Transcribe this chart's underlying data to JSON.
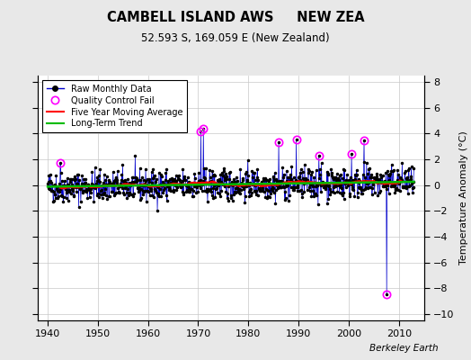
{
  "title": "CAMBELL ISLAND AWS     NEW ZEA",
  "subtitle": "52.593 S, 169.059 E (New Zealand)",
  "ylabel": "Temperature Anomaly (°C)",
  "xlabel_credit": "Berkeley Earth",
  "background_color": "#e8e8e8",
  "plot_bg_color": "#ffffff",
  "xlim": [
    1938,
    2015
  ],
  "ylim": [
    -10.5,
    8.5
  ],
  "yticks": [
    -10,
    -8,
    -6,
    -4,
    -2,
    0,
    2,
    4,
    6,
    8
  ],
  "xticks": [
    1940,
    1950,
    1960,
    1970,
    1980,
    1990,
    2000,
    2010
  ],
  "raw_line_color": "#0000cc",
  "raw_marker_color": "#000000",
  "qc_fail_color": "#ff00ff",
  "moving_avg_color": "#ff0000",
  "trend_color": "#00bb00",
  "seed": 42,
  "start_year": 1940,
  "end_year": 2013,
  "n_months": 876
}
